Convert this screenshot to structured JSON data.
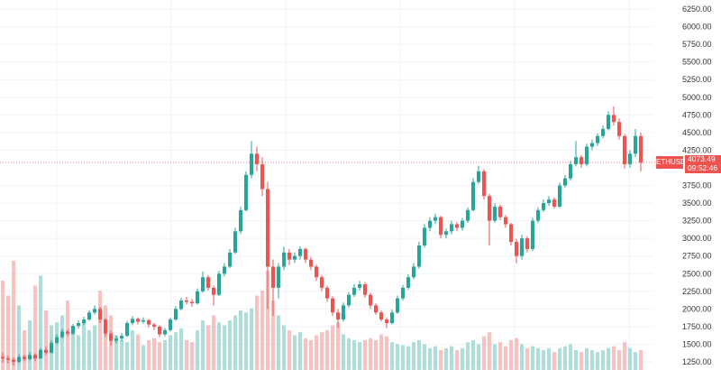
{
  "chart_data": {
    "type": "candlestick",
    "symbol": "ETHUSD",
    "last_price": "4073.49",
    "countdown": "09:52:46",
    "ylim": [
      1200,
      6300
    ],
    "y_ticks": [
      "6250.00",
      "6000.00",
      "5750.00",
      "5500.00",
      "5250.00",
      "5000.00",
      "4750.00",
      "4500.00",
      "4250.00",
      "3750.00",
      "3500.00",
      "3250.00",
      "3000.00",
      "2750.00",
      "2500.00",
      "2250.00",
      "2000.00",
      "1750.00",
      "1500.00",
      "1250.00"
    ],
    "grid": true,
    "colors": {
      "up": "#26a69a",
      "down": "#ef5350",
      "up_volume": "#9ad6cf",
      "down_volume": "#f7b2b0",
      "price_label": "#ef5350"
    },
    "candles": [
      [
        1320,
        1380,
        1240,
        1300
      ],
      [
        1300,
        1340,
        1230,
        1280
      ],
      [
        1280,
        1310,
        1200,
        1250
      ],
      [
        1250,
        1360,
        1230,
        1320
      ],
      [
        1320,
        1350,
        1260,
        1290
      ],
      [
        1290,
        1390,
        1270,
        1350
      ],
      [
        1350,
        1370,
        1260,
        1300
      ],
      [
        1300,
        1450,
        1290,
        1420
      ],
      [
        1420,
        1460,
        1350,
        1380
      ],
      [
        1380,
        1560,
        1370,
        1520
      ],
      [
        1520,
        1640,
        1500,
        1600
      ],
      [
        1600,
        1720,
        1580,
        1680
      ],
      [
        1680,
        1710,
        1610,
        1650
      ],
      [
        1650,
        1790,
        1630,
        1760
      ],
      [
        1760,
        1840,
        1720,
        1800
      ],
      [
        1800,
        1890,
        1770,
        1850
      ],
      [
        1850,
        1980,
        1830,
        1950
      ],
      [
        1950,
        2050,
        1920,
        2000
      ],
      [
        2000,
        2030,
        1800,
        1850
      ],
      [
        1850,
        1870,
        1600,
        1650
      ],
      [
        1650,
        1690,
        1480,
        1550
      ],
      [
        1550,
        1620,
        1510,
        1580
      ],
      [
        1580,
        1660,
        1540,
        1620
      ],
      [
        1620,
        1830,
        1600,
        1800
      ],
      [
        1800,
        1900,
        1770,
        1860
      ],
      [
        1860,
        1880,
        1780,
        1820
      ],
      [
        1820,
        1880,
        1790,
        1840
      ],
      [
        1840,
        1860,
        1740,
        1780
      ],
      [
        1780,
        1800,
        1700,
        1750
      ],
      [
        1750,
        1770,
        1600,
        1640
      ],
      [
        1640,
        1730,
        1610,
        1700
      ],
      [
        1700,
        1880,
        1680,
        1850
      ],
      [
        1850,
        2040,
        1830,
        2000
      ],
      [
        2000,
        2160,
        1980,
        2120
      ],
      [
        2120,
        2170,
        2060,
        2100
      ],
      [
        2100,
        2140,
        2030,
        2080
      ],
      [
        2080,
        2290,
        2060,
        2250
      ],
      [
        2250,
        2530,
        2230,
        2450
      ],
      [
        2450,
        2480,
        2260,
        2300
      ],
      [
        2300,
        2330,
        2050,
        2200
      ],
      [
        2200,
        2540,
        2180,
        2500
      ],
      [
        2500,
        2650,
        2460,
        2600
      ],
      [
        2600,
        2850,
        2580,
        2800
      ],
      [
        2800,
        3150,
        2780,
        3100
      ],
      [
        3100,
        3450,
        3060,
        3400
      ],
      [
        3400,
        3950,
        3380,
        3900
      ],
      [
        3900,
        4380,
        3850,
        4200
      ],
      [
        4200,
        4300,
        3950,
        4050
      ],
      [
        4050,
        4150,
        3600,
        3700
      ],
      [
        3700,
        3800,
        2000,
        2600
      ],
      [
        2600,
        2700,
        1900,
        2300
      ],
      [
        2300,
        2650,
        2150,
        2600
      ],
      [
        2600,
        2880,
        2550,
        2800
      ],
      [
        2800,
        2850,
        2620,
        2700
      ],
      [
        2700,
        2800,
        2650,
        2750
      ],
      [
        2750,
        2890,
        2700,
        2850
      ],
      [
        2850,
        2870,
        2650,
        2700
      ],
      [
        2700,
        2740,
        2550,
        2600
      ],
      [
        2600,
        2630,
        2400,
        2450
      ],
      [
        2450,
        2480,
        2250,
        2300
      ],
      [
        2300,
        2330,
        2100,
        2150
      ],
      [
        2150,
        2180,
        1900,
        1950
      ],
      [
        1950,
        2000,
        1730,
        1850
      ],
      [
        1850,
        2090,
        1820,
        2050
      ],
      [
        2050,
        2240,
        2020,
        2200
      ],
      [
        2200,
        2350,
        2170,
        2300
      ],
      [
        2300,
        2400,
        2260,
        2350
      ],
      [
        2350,
        2380,
        2160,
        2200
      ],
      [
        2200,
        2230,
        2000,
        2050
      ],
      [
        2050,
        2080,
        1920,
        1950
      ],
      [
        1950,
        1980,
        1820,
        1850
      ],
      [
        1850,
        1880,
        1730,
        1800
      ],
      [
        1800,
        1990,
        1780,
        1950
      ],
      [
        1950,
        2190,
        1930,
        2150
      ],
      [
        2150,
        2340,
        2120,
        2300
      ],
      [
        2300,
        2490,
        2270,
        2450
      ],
      [
        2450,
        2650,
        2420,
        2600
      ],
      [
        2600,
        2950,
        2570,
        2900
      ],
      [
        2900,
        3200,
        2870,
        3150
      ],
      [
        3150,
        3300,
        3100,
        3250
      ],
      [
        3250,
        3350,
        3200,
        3300
      ],
      [
        3300,
        3320,
        3000,
        3050
      ],
      [
        3050,
        3140,
        3000,
        3100
      ],
      [
        3100,
        3250,
        3060,
        3200
      ],
      [
        3200,
        3230,
        3100,
        3150
      ],
      [
        3150,
        3290,
        3110,
        3250
      ],
      [
        3250,
        3440,
        3220,
        3400
      ],
      [
        3400,
        3850,
        3380,
        3800
      ],
      [
        3800,
        4030,
        3770,
        3950
      ],
      [
        3950,
        3980,
        3550,
        3600
      ],
      [
        3600,
        3630,
        2900,
        3250
      ],
      [
        3250,
        3500,
        3220,
        3450
      ],
      [
        3450,
        3480,
        3260,
        3300
      ],
      [
        3300,
        3330,
        3150,
        3200
      ],
      [
        3200,
        3220,
        2900,
        2950
      ],
      [
        2950,
        2990,
        2650,
        2750
      ],
      [
        2750,
        3050,
        2700,
        3000
      ],
      [
        3000,
        3030,
        2800,
        2850
      ],
      [
        2850,
        3290,
        2820,
        3250
      ],
      [
        3250,
        3440,
        3220,
        3400
      ],
      [
        3400,
        3550,
        3370,
        3500
      ],
      [
        3500,
        3600,
        3460,
        3550
      ],
      [
        3550,
        3580,
        3420,
        3450
      ],
      [
        3450,
        3790,
        3430,
        3750
      ],
      [
        3750,
        3900,
        3720,
        3850
      ],
      [
        3850,
        4100,
        3820,
        4050
      ],
      [
        4050,
        4380,
        4020,
        4150
      ],
      [
        4150,
        4180,
        4000,
        4050
      ],
      [
        4050,
        4340,
        4020,
        4300
      ],
      [
        4300,
        4400,
        4250,
        4350
      ],
      [
        4350,
        4490,
        4310,
        4450
      ],
      [
        4450,
        4600,
        4420,
        4550
      ],
      [
        4550,
        4800,
        4530,
        4750
      ],
      [
        4750,
        4870,
        4600,
        4650
      ],
      [
        4650,
        4700,
        4400,
        4450
      ],
      [
        4450,
        4480,
        3990,
        4050
      ],
      [
        4050,
        4250,
        4000,
        4200
      ],
      [
        4200,
        4550,
        4150,
        4450
      ],
      [
        4450,
        4500,
        3950,
        4073
      ]
    ],
    "volume": [
      90,
      75,
      110,
      65,
      40,
      50,
      85,
      95,
      60,
      45,
      48,
      55,
      70,
      42,
      35,
      50,
      40,
      45,
      80,
      65,
      55,
      35,
      30,
      28,
      40,
      36,
      25,
      30,
      32,
      28,
      30,
      35,
      38,
      42,
      30,
      28,
      40,
      50,
      45,
      55,
      48,
      45,
      50,
      55,
      60,
      58,
      62,
      75,
      80,
      100,
      70,
      55,
      45,
      40,
      35,
      38,
      32,
      30,
      35,
      38,
      40,
      45,
      48,
      36,
      32,
      30,
      28,
      30,
      32,
      30,
      36,
      34,
      28,
      26,
      25,
      24,
      28,
      30,
      26,
      22,
      24,
      20,
      22,
      24,
      20,
      22,
      28,
      30,
      26,
      34,
      38,
      26,
      28,
      24,
      30,
      32,
      26,
      22,
      24,
      22,
      20,
      22,
      18,
      22,
      24,
      26,
      20,
      18,
      22,
      20,
      18,
      20,
      22,
      24,
      20,
      28,
      22,
      18,
      20
    ]
  }
}
